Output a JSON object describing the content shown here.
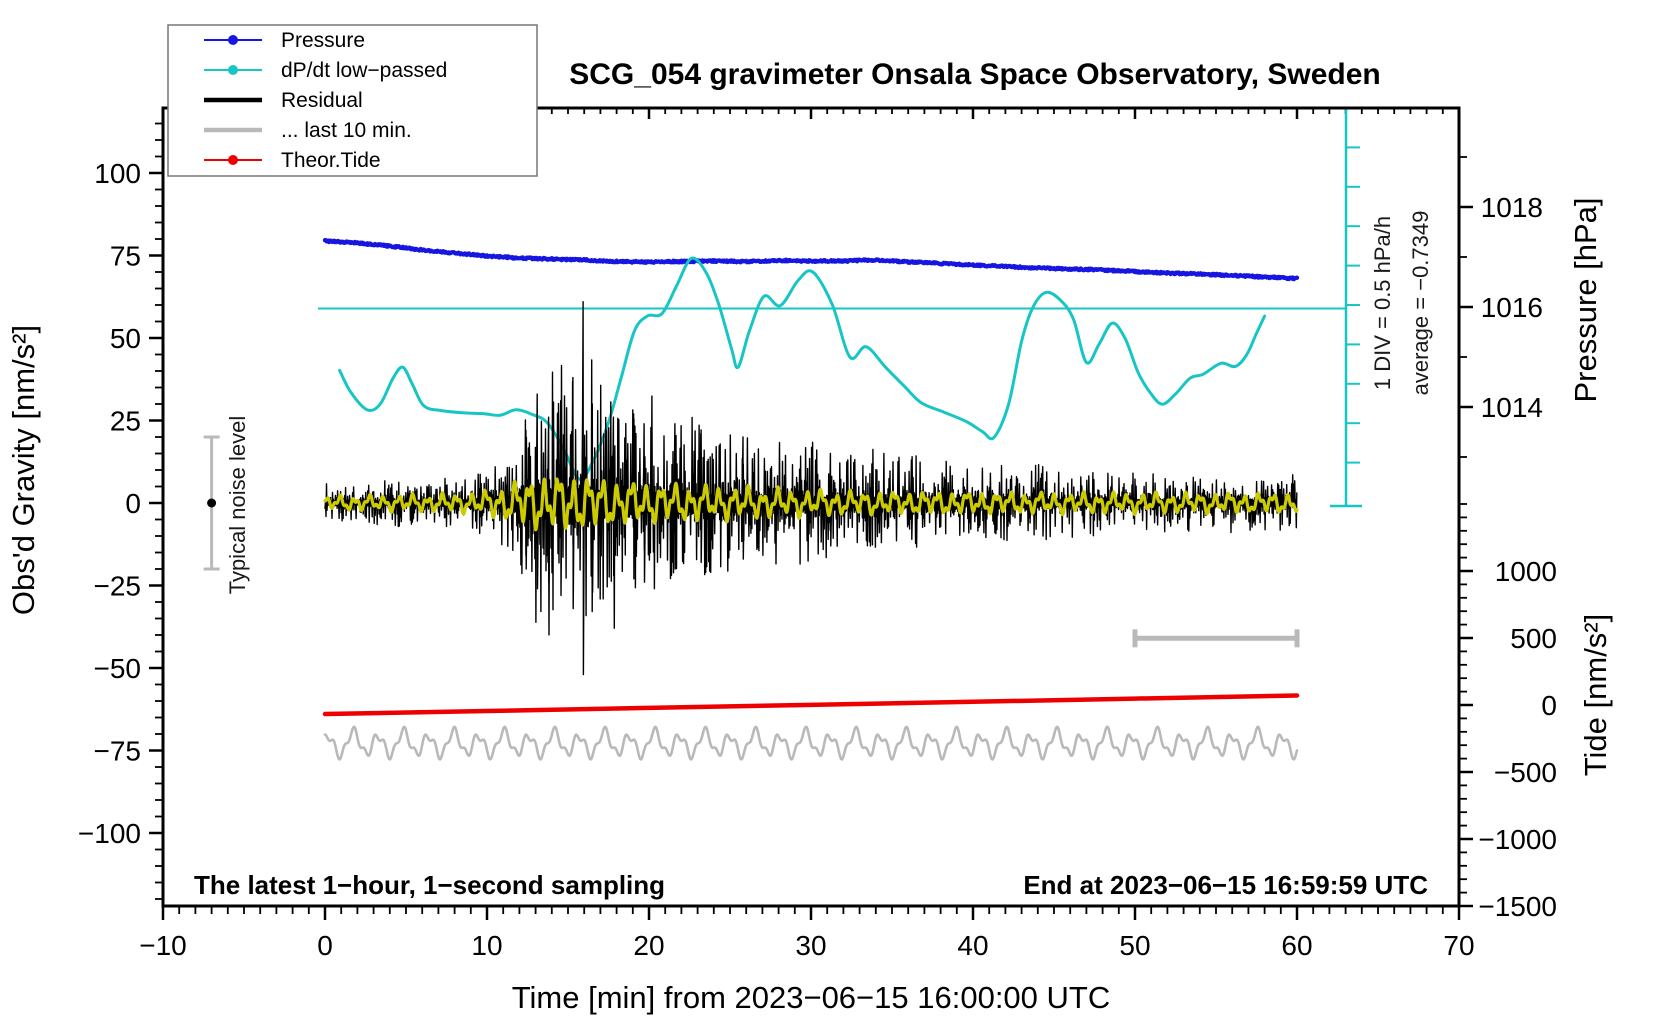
{
  "title": "SCG_054 gravimeter Onsala Space Observatory, Sweden",
  "annotations": {
    "sampling_note": "The latest 1−hour, 1−second sampling",
    "end_note": "End at 2023−06−15 16:59:59 UTC",
    "div_note": "1 DIV = 0.5 hPa/h",
    "average_note": "average = −0.7349",
    "noise_label": "Typical noise level"
  },
  "legend": {
    "items": [
      {
        "label": "Pressure",
        "color": "#1616e0",
        "dot": true,
        "line_weight": 2
      },
      {
        "label": "dP/dt low−passed",
        "color": "#18c5c5",
        "dot": true,
        "line_weight": 2
      },
      {
        "label": "Residual",
        "color": "#000000",
        "dot": false,
        "line_weight": 4.5
      },
      {
        "label": "... last 10 min.",
        "color": "#b9b9b9",
        "dot": false,
        "line_weight": 4.5
      },
      {
        "label": "Theor.Tide",
        "color": "#ee0000",
        "dot": true,
        "line_weight": 2
      }
    ]
  },
  "axes": {
    "x": {
      "label": "Time [min] from 2023−06−15 16:00:00 UTC",
      "min": -10,
      "max": 70,
      "major_ticks": [
        -10,
        0,
        10,
        20,
        30,
        40,
        50,
        60,
        70
      ],
      "minor_step": 1
    },
    "gravity": {
      "label": "Obs'd Gravity [nm/s²]",
      "min": -122,
      "max": 119,
      "major_ticks": [
        -100,
        -75,
        -50,
        -25,
        0,
        25,
        50,
        75,
        100
      ],
      "minor_step": 5
    },
    "pressure": {
      "label": "Pressure [hPa]",
      "range": [
        1013,
        1019
      ],
      "major_ticks": [
        1014,
        1016,
        1018
      ],
      "minor_step": 1
    },
    "tide": {
      "label": "Tide [nm/s²]",
      "range": [
        -1500,
        1500
      ],
      "major_ticks": [
        -1500,
        -1000,
        -500,
        0,
        500,
        1000
      ],
      "minor_step": 100
    }
  },
  "chart_data": {
    "type": "line",
    "xlabel": "Time [min] from 2023−06−15 16:00:00 UTC",
    "x_range": [
      -10,
      70
    ],
    "grid": false,
    "legend_position": "top-left",
    "series": {
      "pressure": {
        "name": "Pressure",
        "units": "hPa",
        "axis": "pressure",
        "color": "#1616e0",
        "points": [
          [
            0,
            1017.32
          ],
          [
            2,
            1017.28
          ],
          [
            4,
            1017.22
          ],
          [
            6,
            1017.14
          ],
          [
            8,
            1017.08
          ],
          [
            10,
            1017.02
          ],
          [
            12,
            1016.98
          ],
          [
            14,
            1016.96
          ],
          [
            16,
            1016.94
          ],
          [
            18,
            1016.91
          ],
          [
            20,
            1016.9
          ],
          [
            22,
            1016.91
          ],
          [
            24,
            1016.92
          ],
          [
            26,
            1016.91
          ],
          [
            28,
            1016.93
          ],
          [
            30,
            1016.92
          ],
          [
            32,
            1016.92
          ],
          [
            34,
            1016.94
          ],
          [
            36,
            1016.9
          ],
          [
            38,
            1016.87
          ],
          [
            40,
            1016.84
          ],
          [
            42,
            1016.81
          ],
          [
            44,
            1016.78
          ],
          [
            46,
            1016.76
          ],
          [
            48,
            1016.74
          ],
          [
            50,
            1016.71
          ],
          [
            52,
            1016.68
          ],
          [
            54,
            1016.66
          ],
          [
            56,
            1016.63
          ],
          [
            58,
            1016.6
          ],
          [
            60,
            1016.57
          ]
        ]
      },
      "dpdt": {
        "name": "dP/dt low−passed",
        "units": "hPa/h",
        "axis": "dpdt",
        "color": "#18c5c5",
        "average": -0.7349,
        "div_value": 0.5,
        "points": [
          [
            0.9,
            -1.52
          ],
          [
            1.6,
            -1.8
          ],
          [
            2.6,
            -2.02
          ],
          [
            3.4,
            -1.95
          ],
          [
            4.2,
            -1.62
          ],
          [
            4.8,
            -1.48
          ],
          [
            5.4,
            -1.7
          ],
          [
            6.1,
            -1.97
          ],
          [
            7.2,
            -2.03
          ],
          [
            8.6,
            -2.06
          ],
          [
            9.8,
            -2.07
          ],
          [
            10.8,
            -2.09
          ],
          [
            11.8,
            -2.02
          ],
          [
            12.8,
            -2.08
          ],
          [
            13.7,
            -2.18
          ],
          [
            14.7,
            -2.5
          ],
          [
            15.7,
            -2.9
          ],
          [
            16.6,
            -2.65
          ],
          [
            17.5,
            -2.18
          ],
          [
            18.3,
            -1.6
          ],
          [
            19.1,
            -1.02
          ],
          [
            19.9,
            -0.83
          ],
          [
            20.8,
            -0.8
          ],
          [
            21.7,
            -0.45
          ],
          [
            22.6,
            -0.1
          ],
          [
            23.5,
            -0.27
          ],
          [
            24.3,
            -0.68
          ],
          [
            25.1,
            -1.25
          ],
          [
            25.5,
            -1.48
          ],
          [
            26.2,
            -1.02
          ],
          [
            27.1,
            -0.58
          ],
          [
            28.1,
            -0.7
          ],
          [
            29.2,
            -0.38
          ],
          [
            30.1,
            -0.27
          ],
          [
            31.3,
            -0.68
          ],
          [
            32.4,
            -1.35
          ],
          [
            33.4,
            -1.22
          ],
          [
            34.6,
            -1.48
          ],
          [
            35.8,
            -1.73
          ],
          [
            36.8,
            -1.93
          ],
          [
            38.2,
            -2.05
          ],
          [
            39.6,
            -2.17
          ],
          [
            40.6,
            -2.3
          ],
          [
            41.3,
            -2.37
          ],
          [
            42.2,
            -1.95
          ],
          [
            43.0,
            -1.15
          ],
          [
            43.7,
            -0.72
          ],
          [
            44.5,
            -0.53
          ],
          [
            45.4,
            -0.63
          ],
          [
            46.2,
            -0.87
          ],
          [
            47.0,
            -1.42
          ],
          [
            47.8,
            -1.18
          ],
          [
            48.6,
            -0.92
          ],
          [
            49.4,
            -1.12
          ],
          [
            50.2,
            -1.55
          ],
          [
            51.0,
            -1.82
          ],
          [
            51.7,
            -1.95
          ],
          [
            52.5,
            -1.82
          ],
          [
            53.4,
            -1.62
          ],
          [
            54.2,
            -1.57
          ],
          [
            55.3,
            -1.43
          ],
          [
            56.2,
            -1.47
          ],
          [
            56.9,
            -1.32
          ],
          [
            57.5,
            -1.05
          ],
          [
            58.0,
            -0.83
          ]
        ]
      },
      "residual": {
        "name": "Residual",
        "units": "nm/s2",
        "axis": "gravity",
        "color": "#000000",
        "center": 0,
        "seed": 7,
        "envelope": [
          [
            0,
            4
          ],
          [
            3,
            4.5
          ],
          [
            6,
            5
          ],
          [
            8,
            5.5
          ],
          [
            9,
            6.5
          ],
          [
            10,
            8
          ],
          [
            11,
            12
          ],
          [
            12,
            18
          ],
          [
            13,
            26
          ],
          [
            14,
            27
          ],
          [
            15,
            32
          ],
          [
            15.8,
            42
          ],
          [
            16.5,
            30
          ],
          [
            17,
            27
          ],
          [
            18,
            25
          ],
          [
            19,
            27
          ],
          [
            20,
            25
          ],
          [
            21,
            22
          ],
          [
            22,
            18
          ],
          [
            23,
            19
          ],
          [
            24,
            16
          ],
          [
            25,
            17
          ],
          [
            26,
            15
          ],
          [
            27,
            13
          ],
          [
            28,
            14
          ],
          [
            29,
            12
          ],
          [
            30,
            13
          ],
          [
            31,
            12
          ],
          [
            32,
            11
          ],
          [
            33,
            10
          ],
          [
            34,
            11
          ],
          [
            35,
            9
          ],
          [
            36,
            10
          ],
          [
            37,
            9
          ],
          [
            38,
            8.5
          ],
          [
            40,
            8
          ],
          [
            42,
            7.5
          ],
          [
            44,
            8.5
          ],
          [
            46,
            7
          ],
          [
            48,
            6.5
          ],
          [
            50,
            6
          ],
          [
            52,
            6
          ],
          [
            54,
            5.5
          ],
          [
            56,
            6
          ],
          [
            58,
            6
          ],
          [
            60,
            6.5
          ]
        ],
        "spikes": [
          [
            12.4,
            22,
            -20
          ],
          [
            13.1,
            33,
            -26
          ],
          [
            13.8,
            26,
            -24
          ],
          [
            14.55,
            31,
            -28
          ],
          [
            15.3,
            38,
            -32
          ],
          [
            15.93,
            61,
            -52
          ],
          [
            16.5,
            30,
            -27
          ],
          [
            17.8,
            26,
            -22
          ],
          [
            19.05,
            27,
            -23
          ],
          [
            19.7,
            24,
            -24
          ],
          [
            21.6,
            24,
            -20
          ],
          [
            23.2,
            21,
            -18
          ],
          [
            25.8,
            20,
            -17
          ],
          [
            31.2,
            15,
            -13
          ],
          [
            36.2,
            13,
            -11
          ],
          [
            44.3,
            11,
            -10
          ]
        ]
      },
      "filtered": {
        "name": "low-passed residual overlay",
        "axis": "gravity",
        "color": "#cbcb00",
        "envelope": [
          [
            0,
            2.5
          ],
          [
            6,
            3
          ],
          [
            9,
            3.5
          ],
          [
            10,
            4.5
          ],
          [
            11,
            6
          ],
          [
            12,
            8
          ],
          [
            13,
            9.5
          ],
          [
            15,
            10
          ],
          [
            17,
            9
          ],
          [
            18,
            8
          ],
          [
            20,
            7
          ],
          [
            22,
            6.5
          ],
          [
            24,
            6
          ],
          [
            26,
            5.5
          ],
          [
            28,
            5
          ],
          [
            30,
            4.5
          ],
          [
            34,
            4
          ],
          [
            38,
            4
          ],
          [
            42,
            3.8
          ],
          [
            46,
            3.6
          ],
          [
            50,
            3.5
          ],
          [
            55,
            3.5
          ],
          [
            60,
            3.5
          ]
        ]
      },
      "last10": {
        "name": "... last 10 min.",
        "axis": "gravity",
        "color": "#b9b9b9",
        "center": -73,
        "components": [
          {
            "amp": 3.2,
            "period": 1.55,
            "phase": 0.8
          },
          {
            "amp": 1.3,
            "period": 0.62,
            "phase": 2.1
          },
          {
            "amp": 0.8,
            "period": 3.1,
            "phase": 4.0
          }
        ],
        "marker_bar": {
          "t0": 50,
          "t1": 60,
          "level": -41
        }
      },
      "tide": {
        "name": "Theor.Tide",
        "units": "nm/s2",
        "axis": "tide",
        "color": "#ee0000",
        "points": [
          [
            0,
            -67
          ],
          [
            10,
            -45
          ],
          [
            20,
            -22
          ],
          [
            30,
            1
          ],
          [
            40,
            24
          ],
          [
            50,
            48
          ],
          [
            60,
            71
          ]
        ]
      }
    },
    "noise_marker": {
      "t": -7.0,
      "value": 0,
      "range": [
        -20,
        20
      ],
      "color": "#b9b9b9"
    }
  }
}
